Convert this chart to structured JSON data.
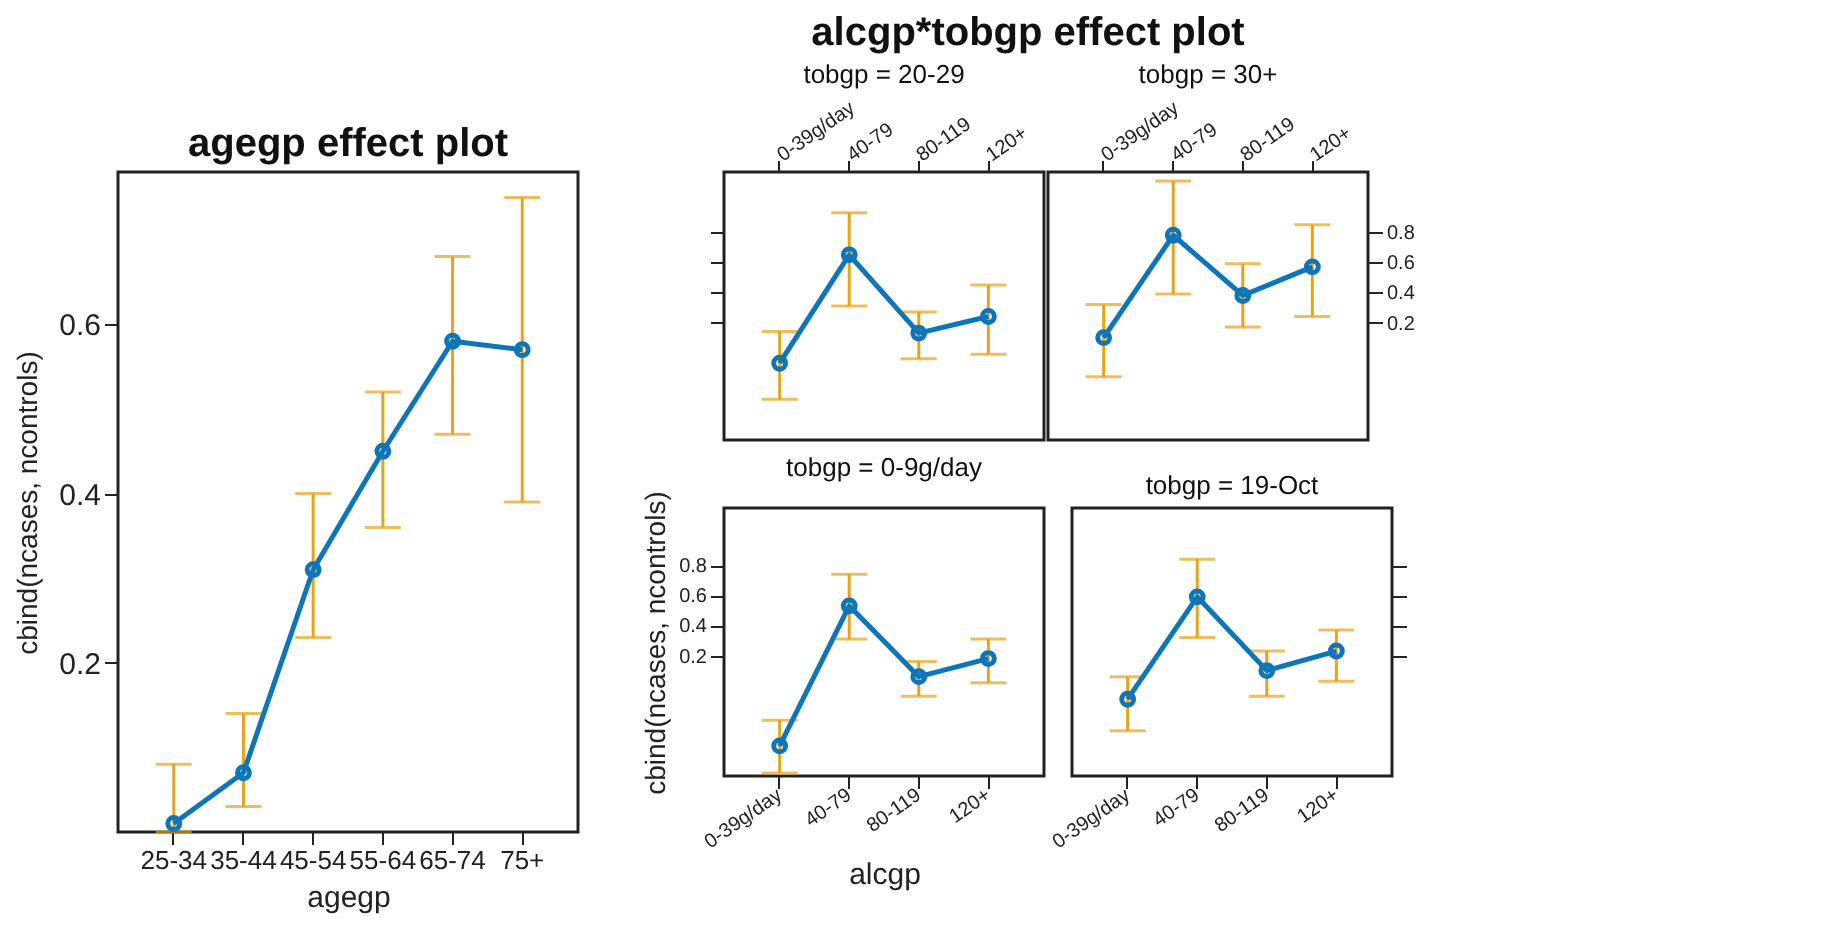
{
  "chart_data": [
    {
      "type": "line",
      "title": "agegp effect plot",
      "xlabel": "agegp",
      "ylabel": "cbind(ncases, ncontrols)",
      "categories": [
        "25-34",
        "35-44",
        "45-54",
        "55-64",
        "65-74",
        "75+"
      ],
      "series": [
        {
          "color": "#0e76b8",
          "values": [
            0.01,
            0.07,
            0.31,
            0.45,
            0.58,
            0.57
          ],
          "errors": [
            [
              0,
              0.08
            ],
            [
              0.03,
              0.14
            ],
            [
              0.23,
              0.4
            ],
            [
              0.36,
              0.52
            ],
            [
              0.47,
              0.68
            ],
            [
              0.39,
              0.75
            ]
          ]
        }
      ],
      "marker": "circle",
      "ylim": [
        0,
        0.78
      ],
      "yticks": [
        0.2,
        0.4,
        0.6
      ]
    },
    {
      "type": "line",
      "title": "alcgp*tobgp effect plot",
      "subtitle": "tobgp = 20-29",
      "categories": [
        "0-39g/day",
        "40-79",
        "80-119",
        "120+"
      ],
      "series": [
        {
          "color": "#0e76b8",
          "values": [
            -0.07,
            0.65,
            0.13,
            0.24
          ],
          "errors": [
            [
              -0.31,
              0.14
            ],
            [
              0.31,
              0.93
            ],
            [
              -0.04,
              0.27
            ],
            [
              -0.01,
              0.45
            ]
          ]
        }
      ],
      "marker": "circle",
      "ylim": [
        -0.58,
        1.2
      ],
      "yticks": [
        0.2,
        0.4,
        0.6,
        0.8
      ],
      "tick_labels": "x"
    },
    {
      "type": "line",
      "subtitle": "tobgp = 30+",
      "categories": [
        "0-39g/day",
        "40-79",
        "80-119",
        "120+"
      ],
      "series": [
        {
          "color": "#0e76b8",
          "values": [
            0.1,
            0.78,
            0.38,
            0.57
          ],
          "errors": [
            [
              -0.16,
              0.32
            ],
            [
              0.39,
              1.14
            ],
            [
              0.17,
              0.59
            ],
            [
              0.24,
              0.85
            ]
          ]
        }
      ],
      "marker": "circle",
      "ylim": [
        -0.58,
        1.2
      ],
      "yticks": [
        0.2,
        0.4,
        0.6,
        0.8
      ]
    },
    {
      "type": "line",
      "subtitle": "tobgp = 0-9g/day",
      "xlabel": "alcgp",
      "ylabel": "cbind(ncases, ncontrols)",
      "categories": [
        "0-39g/day",
        "40-79",
        "80-119",
        "120+"
      ],
      "series": [
        {
          "color": "#0e76b8",
          "values": [
            -0.4,
            0.53,
            0.06,
            0.18
          ],
          "errors": [
            [
              -0.58,
              -0.23
            ],
            [
              0.31,
              0.74
            ],
            [
              -0.07,
              0.16
            ],
            [
              0.02,
              0.31
            ]
          ]
        }
      ],
      "marker": "circle",
      "ylim": [
        -0.6,
        1.18
      ],
      "yticks": [
        0.2,
        0.4,
        0.6,
        0.8
      ]
    },
    {
      "type": "line",
      "subtitle": "tobgp = 19-Oct",
      "categories": [
        "0-39g/day",
        "40-79",
        "80-119",
        "120+"
      ],
      "series": [
        {
          "color": "#0e76b8",
          "values": [
            -0.09,
            0.59,
            0.1,
            0.23
          ],
          "errors": [
            [
              -0.3,
              0.06
            ],
            [
              0.32,
              0.84
            ],
            [
              -0.07,
              0.23
            ],
            [
              0.03,
              0.37
            ]
          ]
        }
      ],
      "marker": "circle",
      "ylim": [
        -0.6,
        1.18
      ],
      "yticks": [
        0.2,
        0.4,
        0.6,
        0.8
      ],
      "tick_labels": "x"
    }
  ]
}
